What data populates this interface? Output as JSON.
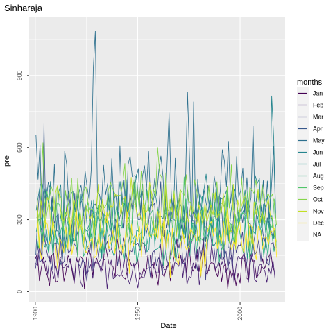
{
  "chart_data": {
    "type": "line",
    "title": "Sinharaja",
    "xlabel": "Date",
    "ylabel": "pre",
    "x_range": [
      1900,
      2017
    ],
    "xlim": [
      1897,
      2022
    ],
    "ylim": [
      -45,
      1145
    ],
    "x_ticks": [
      1900,
      1950,
      2000
    ],
    "y_ticks": [
      0,
      300,
      600,
      900
    ],
    "x_tick_labels": [
      "1900",
      "1950",
      "2000"
    ],
    "y_tick_labels": [
      "0",
      "300",
      "600",
      "900"
    ],
    "grid": true,
    "panel_background": "#ebebeb",
    "legend": {
      "title": "months",
      "position": "right",
      "entries": [
        "Jan",
        "Feb",
        "Mar",
        "Apr",
        "May",
        "Jun",
        "Jul",
        "Aug",
        "Sep",
        "Oct",
        "Nov",
        "Dec",
        "NA"
      ]
    },
    "series": [
      {
        "name": "Jan",
        "color": "#440154",
        "base": 110,
        "amp": 75
      },
      {
        "name": "Feb",
        "color": "#482173",
        "base": 95,
        "amp": 70
      },
      {
        "name": "Mar",
        "color": "#433E85",
        "base": 170,
        "amp": 90
      },
      {
        "name": "Apr",
        "color": "#38598C",
        "base": 300,
        "amp": 130
      },
      {
        "name": "May",
        "color": "#2D708E",
        "base": 420,
        "amp": 170
      },
      {
        "name": "Jun",
        "color": "#25858E",
        "base": 350,
        "amp": 130
      },
      {
        "name": "Jul",
        "color": "#1E9B8A",
        "base": 250,
        "amp": 100
      },
      {
        "name": "Aug",
        "color": "#2BB07F",
        "base": 240,
        "amp": 100
      },
      {
        "name": "Sep",
        "color": "#51C56A",
        "base": 300,
        "amp": 110
      },
      {
        "name": "Oct",
        "color": "#85D54A",
        "base": 380,
        "amp": 120
      },
      {
        "name": "Nov",
        "color": "#C2DF23",
        "base": 330,
        "amp": 110
      },
      {
        "name": "Dec",
        "color": "#FDE725",
        "base": 220,
        "amp": 100
      }
    ],
    "peaks": [
      {
        "series": "May",
        "x": 1929.4,
        "y": 1085
      },
      {
        "series": "May",
        "x": 1928.4,
        "y": 930
      },
      {
        "series": "May",
        "x": 1974.4,
        "y": 830
      },
      {
        "series": "Jun",
        "x": 2015.4,
        "y": 815
      },
      {
        "series": "May",
        "x": 1977.4,
        "y": 790
      },
      {
        "series": "May",
        "x": 1965.4,
        "y": 745
      },
      {
        "series": "May",
        "x": 2006.4,
        "y": 690
      },
      {
        "series": "Apr",
        "x": 1904.3,
        "y": 700
      },
      {
        "series": "Oct",
        "x": 1959.8,
        "y": 600
      },
      {
        "series": "Jun",
        "x": 2016.5,
        "y": 640
      },
      {
        "series": "Oct",
        "x": 1903.8,
        "y": 620
      }
    ]
  },
  "colors": {
    "na_key": "#7f7f7f"
  }
}
